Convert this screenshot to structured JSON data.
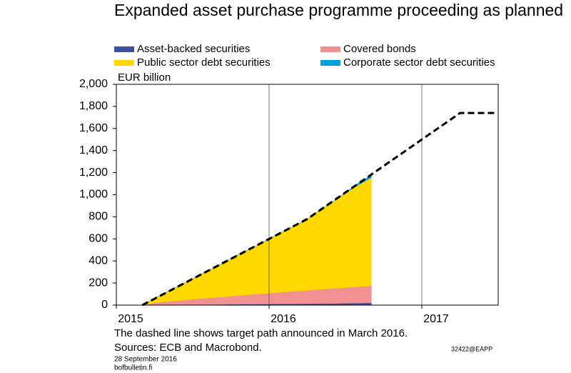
{
  "chart_data": {
    "type": "stacked_area",
    "title": "Expanded asset purchase programme proceeding as planned",
    "y_unit": "EUR billion",
    "x": [
      2015.17,
      2015.25,
      2015.33,
      2015.42,
      2015.5,
      2015.58,
      2015.67,
      2015.75,
      2015.83,
      2015.92,
      2016.0,
      2016.08,
      2016.17,
      2016.25,
      2016.33,
      2016.42,
      2016.5,
      2016.58,
      2016.67
    ],
    "series": [
      {
        "name": "Asset-backed securities",
        "color": "#3f4f9f",
        "values": [
          0,
          1,
          2,
          3,
          4,
          5,
          6,
          7,
          8,
          9,
          10,
          11,
          12,
          13,
          14,
          15,
          17,
          19,
          21
        ]
      },
      {
        "name": "Covered bonds",
        "color": "#f09090",
        "values": [
          0,
          20,
          30,
          40,
          50,
          58,
          66,
          74,
          82,
          90,
          98,
          106,
          114,
          120,
          128,
          136,
          142,
          148,
          155
        ]
      },
      {
        "name": "Public sector debt securities",
        "color": "#ffd800",
        "values": [
          0,
          39,
          88,
          137,
          186,
          237,
          288,
          339,
          390,
          441,
          492,
          543,
          594,
          647,
          718,
          789,
          856,
          918,
          979
        ]
      },
      {
        "name": "Corporate sector debt securities",
        "color": "#00a0dc",
        "values": [
          0,
          0,
          0,
          0,
          0,
          0,
          0,
          0,
          0,
          0,
          0,
          0,
          0,
          0,
          0,
          0,
          5,
          15,
          25
        ]
      }
    ],
    "target_line": {
      "x": [
        2015.17,
        2016.25,
        2017.0,
        2017.25,
        2017.5
      ],
      "values": [
        0,
        780,
        1500,
        1740,
        1740
      ],
      "color": "#000000",
      "dashed": true
    },
    "xlim": [
      2015,
      2017.5
    ],
    "xticks": [
      2015,
      2016,
      2017
    ],
    "ylim": [
      0,
      2000
    ],
    "yticks": [
      0,
      200,
      400,
      600,
      800,
      {
        "value": 1000,
        "label": "1,000"
      },
      {
        "value": 1200,
        "label": "1,200"
      },
      {
        "value": 1400,
        "label": "1,400"
      },
      {
        "value": 1600,
        "label": "1,600"
      },
      {
        "value": 1800,
        "label": "1,800"
      },
      {
        "value": 2000,
        "label": "2,000"
      }
    ],
    "grid": "x",
    "note": "The dashed line shows target path announced in March 2016.",
    "source": "Sources: ECB and Macrobond.",
    "code": "32422@EAPP",
    "date": "28 September 2016",
    "website": "bofbulletin.fi"
  }
}
